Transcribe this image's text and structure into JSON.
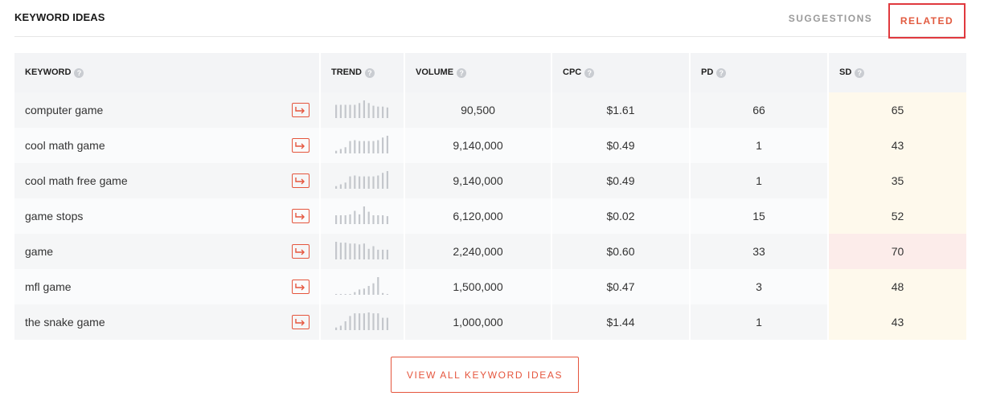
{
  "header": {
    "title": "KEYWORD IDEAS",
    "tabs": [
      {
        "label": "SUGGESTIONS",
        "active": false
      },
      {
        "label": "RELATED",
        "active": true
      }
    ]
  },
  "table": {
    "columns": [
      "KEYWORD",
      "TREND",
      "VOLUME",
      "CPC",
      "PD",
      "SD"
    ],
    "rows": [
      {
        "keyword": "computer game",
        "volume": "90,500",
        "cpc": "$1.61",
        "pd": "66",
        "sd": "65",
        "trend": [
          0.75,
          0.75,
          0.75,
          0.75,
          0.75,
          0.85,
          1.0,
          0.85,
          0.7,
          0.65,
          0.65,
          0.6
        ]
      },
      {
        "keyword": "cool math game",
        "volume": "9,140,000",
        "cpc": "$0.49",
        "pd": "1",
        "sd": "43",
        "trend": [
          0.15,
          0.25,
          0.35,
          0.7,
          0.75,
          0.7,
          0.7,
          0.7,
          0.7,
          0.75,
          0.9,
          1.0
        ]
      },
      {
        "keyword": "cool math free game",
        "volume": "9,140,000",
        "cpc": "$0.49",
        "pd": "1",
        "sd": "35",
        "trend": [
          0.15,
          0.25,
          0.35,
          0.7,
          0.75,
          0.7,
          0.7,
          0.7,
          0.7,
          0.75,
          0.9,
          1.0
        ]
      },
      {
        "keyword": "game stops",
        "volume": "6,120,000",
        "cpc": "$0.02",
        "pd": "15",
        "sd": "52",
        "trend": [
          0.5,
          0.5,
          0.5,
          0.55,
          0.75,
          0.55,
          1.0,
          0.7,
          0.5,
          0.5,
          0.5,
          0.45
        ]
      },
      {
        "keyword": "game",
        "volume": "2,240,000",
        "cpc": "$0.60",
        "pd": "33",
        "sd": "70",
        "trend": [
          1.0,
          0.95,
          0.95,
          0.9,
          0.9,
          0.85,
          0.9,
          0.6,
          0.75,
          0.55,
          0.55,
          0.55
        ]
      },
      {
        "keyword": "mfl game",
        "volume": "1,500,000",
        "cpc": "$0.47",
        "pd": "3",
        "sd": "48",
        "trend": [
          0.0,
          0.0,
          0.0,
          0.0,
          0.15,
          0.3,
          0.35,
          0.5,
          0.65,
          1.0,
          0.1,
          0.0
        ]
      },
      {
        "keyword": "the snake game",
        "volume": "1,000,000",
        "cpc": "$1.44",
        "pd": "1",
        "sd": "43",
        "trend": [
          0.15,
          0.25,
          0.5,
          0.8,
          0.95,
          0.95,
          0.95,
          1.0,
          0.95,
          0.95,
          0.7,
          0.7
        ]
      }
    ]
  },
  "footer": {
    "button_label": "VIEW ALL KEYWORD IDEAS"
  },
  "colors": {
    "accent": "#e5553d",
    "related_tab_border": "#e0393e",
    "trend_bar": "#c4c7cc",
    "sd_bg": "#fef9ec",
    "sd_hot_bg": "#fcecea"
  },
  "icons": {
    "help": "question-circle-icon",
    "keyword_action": "arrow-right-enter-icon"
  }
}
